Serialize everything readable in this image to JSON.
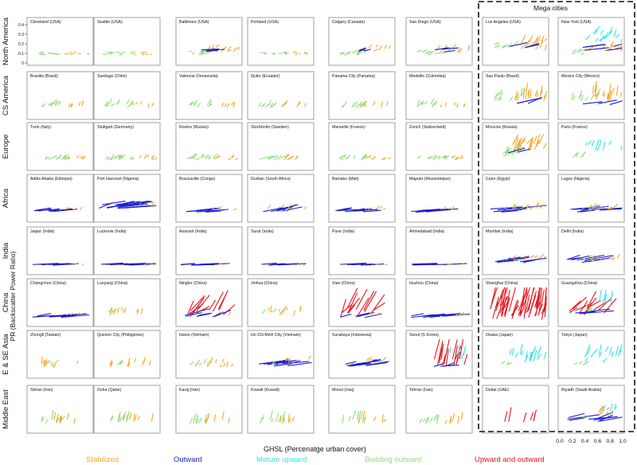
{
  "chart_data": {
    "type": "line",
    "xlabel": "GHSL (Percenatge urban cover)",
    "ylabel": "PR (Backscatter Power Ratio)",
    "xlim": [
      0.0,
      1.0
    ],
    "ylim": [
      0.0,
      0.4
    ],
    "x_ticks": [
      "0.0",
      "0.2",
      "0.4",
      "0.6",
      "0.8",
      "1.0"
    ],
    "y_ticks": [
      "0",
      "0.1",
      "0.2",
      "0.3",
      "0.4"
    ],
    "group_label": "Mega cities",
    "row_labels": [
      "North America",
      "CS America",
      "Europe",
      "Africa",
      "India",
      "China",
      "E & SE Asia",
      "Middle East"
    ],
    "legend": [
      {
        "label": "Stabilized",
        "color": "#f5a623"
      },
      {
        "label": "Outward",
        "color": "#1c1ccf"
      },
      {
        "label": "Mature upward",
        "color": "#2ee6ea"
      },
      {
        "label": "Budding outward",
        "color": "#8fdc7c"
      },
      {
        "label": "Upward and outward",
        "color": "#e8141c"
      }
    ],
    "panels": [
      [
        "Cleveland (USA)",
        "Seattle (USA)",
        "Baltimore (USA)",
        "Portland (USA)",
        "Calgary (Canada)",
        "San Diego (USA)",
        "Los Angeles (USA)",
        "New York (USA)"
      ],
      [
        "Brasilia (Brazil)",
        "Santiago (Chile)",
        "Valencia (Venezuela)",
        "Quito (Ecuador)",
        "Panama City (Panama)",
        "Medellin (Colombia)",
        "Sao Paulo (Brazil)",
        "Mexico City (Mexico)"
      ],
      [
        "Turin (Italy)",
        "Stuttgart (Germany)",
        "Rostov (Russia)",
        "Stockholm (Sweden)",
        "Marseille (France)",
        "Zurich (Switzerland)",
        "Moscow (Russia)",
        "Paris (France)"
      ],
      [
        "Addis Ababa (Ethiopia)",
        "Port Harcourt (Nigeria)",
        "Brazzaville (Congo)",
        "Durban (South Africa)",
        "Bamako (Mali)",
        "Maputo (Mozambique)",
        "Cairo (Egypt)",
        "Lagos (Nigeria)"
      ],
      [
        "Jaipur (India)",
        "Lucknow (India)",
        "Asansol (India)",
        "Surat (India)",
        "Pune (India)",
        "Ahmedabad (India)",
        "Mumbai (India)",
        "Delhi (India)"
      ],
      [
        "Changchun (China)",
        "Luoyang (China)",
        "Ningbo (China)",
        "Jinhua (China)",
        "Xian (China)",
        "Huzhou (China)",
        "Shanghai (China)",
        "Guangzhou (China)"
      ],
      [
        "Zhongli (Taiwan)",
        "Quezon City (Philippines)",
        "Hanoi (Vietnam)",
        "Ho Chi Minh City (Vietnam)",
        "Surabaya (Indonesia)",
        "Seoul (S Korea)",
        "Osaka (Japan)",
        "Tokyo (Japan)"
      ],
      [
        "Shiraz (Iran)",
        "Doha (Qatar)",
        "Karaj (Iran)",
        "Kuwait (Kuwait)",
        "Mosul (Iraq)",
        "Tehran (Iran)",
        "Dubai (UAE)",
        "Riyadh (Saudi Arabia)"
      ]
    ],
    "grid": false
  }
}
